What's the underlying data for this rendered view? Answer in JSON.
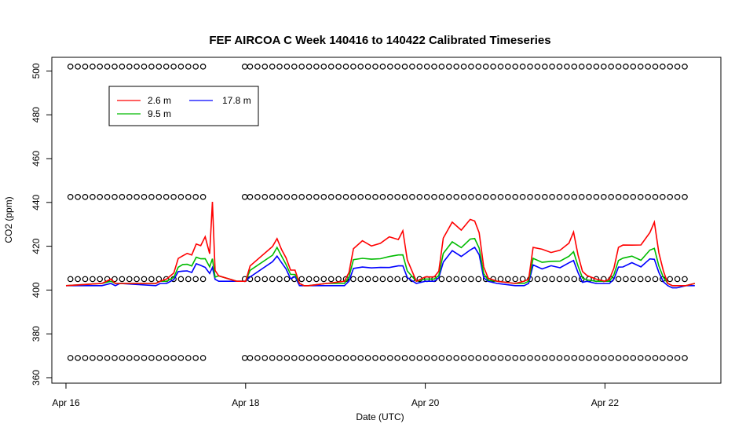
{
  "chart_data": {
    "type": "line",
    "title": "FEF AIRCOA C  Week 140416 to 140422  Calibrated Timeseries",
    "xlabel": "Date (UTC)",
    "ylabel": "CO2 (ppm)",
    "xlim": [
      0,
      7.2
    ],
    "ylim": [
      360,
      508
    ],
    "x_ticks": [
      {
        "value": 0,
        "label": "Apr 16"
      },
      {
        "value": 2,
        "label": "Apr 18"
      },
      {
        "value": 4,
        "label": "Apr 20"
      },
      {
        "value": 6,
        "label": "Apr 22"
      }
    ],
    "y_ticks": [
      360,
      380,
      400,
      420,
      440,
      460,
      480,
      500
    ],
    "legend": {
      "position": "top-left",
      "entries": [
        {
          "name": "2.6 m",
          "color": "#ff0000"
        },
        {
          "name": "9.5 m",
          "color": "#00bb00"
        },
        {
          "name": "17.8 m",
          "color": "#0000ff"
        }
      ]
    },
    "series": [
      {
        "name": "2.6 m",
        "color": "#ff0000",
        "x": [
          0.0,
          0.4,
          0.5,
          0.55,
          0.6,
          1.0,
          1.05,
          1.12,
          1.2,
          1.25,
          1.3,
          1.35,
          1.4,
          1.45,
          1.5,
          1.55,
          1.6,
          1.63,
          1.66,
          1.7,
          1.9,
          2.0,
          2.05,
          2.3,
          2.35,
          2.4,
          2.45,
          2.5,
          2.55,
          2.6,
          2.65,
          2.7,
          2.9,
          3.1,
          3.15,
          3.2,
          3.3,
          3.4,
          3.5,
          3.6,
          3.7,
          3.75,
          3.8,
          3.9,
          4.0,
          4.1,
          4.15,
          4.2,
          4.3,
          4.4,
          4.5,
          4.55,
          4.6,
          4.65,
          4.7,
          4.8,
          5.0,
          5.1,
          5.15,
          5.2,
          5.3,
          5.4,
          5.5,
          5.6,
          5.65,
          5.7,
          5.75,
          5.8,
          5.9,
          6.0,
          6.05,
          6.1,
          6.15,
          6.2,
          6.3,
          6.4,
          6.5,
          6.55,
          6.6,
          6.65,
          6.7,
          6.75,
          6.8,
          6.9,
          7.0
        ],
        "values": [
          402,
          403,
          405,
          403,
          403,
          403,
          404,
          405,
          408,
          413,
          415,
          418,
          417,
          420,
          419,
          425,
          418,
          439,
          410,
          405,
          404,
          404,
          411,
          420,
          422,
          418,
          416,
          410,
          408,
          403,
          402,
          402,
          403,
          404,
          408,
          418,
          423,
          420,
          421,
          425,
          422,
          428,
          415,
          404,
          406,
          406,
          408,
          425,
          430,
          428,
          432,
          430,
          426,
          412,
          406,
          404,
          403,
          404,
          405,
          418,
          420,
          416,
          419,
          421,
          425,
          416,
          410,
          407,
          405,
          404,
          405,
          410,
          420,
          422,
          419,
          422,
          425,
          430,
          418,
          410,
          403,
          402,
          402,
          402,
          403
        ]
      },
      {
        "name": "9.5 m",
        "color": "#00bb00",
        "x": [
          0.0,
          0.4,
          0.5,
          0.55,
          0.6,
          1.0,
          1.05,
          1.12,
          1.2,
          1.25,
          1.3,
          1.35,
          1.4,
          1.45,
          1.5,
          1.55,
          1.6,
          1.63,
          1.66,
          1.7,
          1.9,
          2.0,
          2.05,
          2.3,
          2.35,
          2.4,
          2.45,
          2.5,
          2.55,
          2.6,
          2.65,
          2.7,
          2.9,
          3.1,
          3.15,
          3.2,
          3.3,
          3.4,
          3.5,
          3.6,
          3.7,
          3.75,
          3.8,
          3.9,
          4.0,
          4.1,
          4.15,
          4.2,
          4.3,
          4.4,
          4.5,
          4.55,
          4.6,
          4.65,
          4.7,
          4.8,
          5.0,
          5.1,
          5.15,
          5.2,
          5.3,
          5.4,
          5.5,
          5.6,
          5.65,
          5.7,
          5.75,
          5.8,
          5.9,
          6.0,
          6.05,
          6.1,
          6.15,
          6.2,
          6.3,
          6.4,
          6.5,
          6.55,
          6.6,
          6.65,
          6.7,
          6.75,
          6.8,
          6.9,
          7.0
        ],
        "values": [
          402,
          403,
          404,
          403,
          403,
          403,
          404,
          404,
          406,
          409,
          411,
          413,
          412,
          414,
          413,
          415,
          412,
          413,
          407,
          405,
          404,
          404,
          409,
          416,
          418,
          415,
          413,
          408,
          406,
          403,
          402,
          402,
          403,
          403,
          406,
          413,
          415,
          414,
          414,
          416,
          415,
          417,
          410,
          404,
          405,
          405,
          406,
          418,
          421,
          420,
          423,
          422,
          419,
          409,
          405,
          404,
          403,
          403,
          404,
          413,
          414,
          412,
          414,
          415,
          416,
          411,
          407,
          405,
          404,
          404,
          404,
          407,
          414,
          416,
          414,
          415,
          417,
          418,
          412,
          407,
          403,
          402,
          402,
          402,
          403
        ]
      },
      {
        "name": "17.8 m",
        "color": "#0000ff",
        "x": [
          0.0,
          0.4,
          0.5,
          0.55,
          0.6,
          1.0,
          1.05,
          1.12,
          1.2,
          1.25,
          1.3,
          1.35,
          1.4,
          1.45,
          1.5,
          1.55,
          1.6,
          1.63,
          1.66,
          1.7,
          1.9,
          2.0,
          2.05,
          2.3,
          2.35,
          2.4,
          2.45,
          2.5,
          2.55,
          2.6,
          2.65,
          2.7,
          2.9,
          3.1,
          3.15,
          3.2,
          3.3,
          3.4,
          3.5,
          3.6,
          3.7,
          3.75,
          3.8,
          3.9,
          4.0,
          4.1,
          4.15,
          4.2,
          4.3,
          4.4,
          4.5,
          4.55,
          4.6,
          4.65,
          4.7,
          4.8,
          5.0,
          5.1,
          5.15,
          5.2,
          5.3,
          5.4,
          5.5,
          5.6,
          5.65,
          5.7,
          5.75,
          5.8,
          5.9,
          6.0,
          6.05,
          6.1,
          6.15,
          6.2,
          6.3,
          6.4,
          6.5,
          6.55,
          6.6,
          6.65,
          6.7,
          6.75,
          6.8,
          6.9,
          7.0
        ],
        "values": [
          402,
          402,
          403,
          402,
          403,
          402,
          403,
          403,
          405,
          407,
          408,
          410,
          409,
          411,
          410,
          411,
          409,
          409,
          406,
          404,
          404,
          404,
          406,
          413,
          414,
          412,
          411,
          406,
          405,
          402,
          402,
          402,
          402,
          402,
          404,
          409,
          411,
          410,
          410,
          411,
          410,
          412,
          407,
          403,
          404,
          404,
          405,
          414,
          417,
          416,
          418,
          418,
          416,
          407,
          404,
          403,
          402,
          402,
          403,
          410,
          411,
          410,
          411,
          412,
          412,
          408,
          405,
          404,
          403,
          403,
          403,
          405,
          411,
          412,
          411,
          412,
          413,
          413,
          409,
          405,
          402,
          401,
          401,
          402,
          402
        ]
      },
      {
        "name": "calibration points",
        "type": "scatter",
        "levels": [
          369,
          405,
          442.5,
          502
        ],
        "days": [
          0.05,
          1.6,
          2.05,
          6.95
        ]
      }
    ]
  }
}
